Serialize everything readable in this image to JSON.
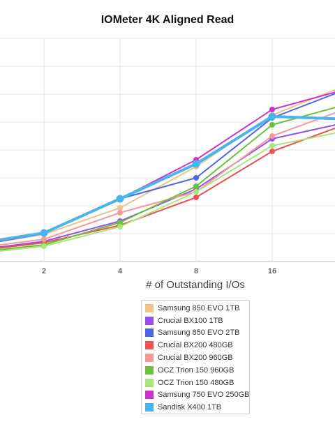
{
  "chart_data": {
    "type": "line",
    "title": "IOMeter 4K Aligned Read",
    "xlabel": "# of Outstanding I/Os",
    "ylabel": "",
    "x": [
      1,
      2,
      4,
      8,
      16,
      32
    ],
    "x_tick_labels": [
      "2",
      "4",
      "8",
      "16"
    ],
    "y_gridlines": 8,
    "grid": true,
    "legend_position": "bottom",
    "series": [
      {
        "name": "Samsung 850 EVO 1TB",
        "color": "#f0c387",
        "values": [
          1.05,
          1.95,
          3.85,
          6.8,
          10.5,
          12.7
        ]
      },
      {
        "name": "Crucial BX100 1TB",
        "color": "#9b4ee8",
        "values": [
          0.75,
          1.45,
          2.9,
          5.2,
          8.8,
          10.0
        ]
      },
      {
        "name": "Samsung 850 EVO 2TB",
        "color": "#4d67e4",
        "values": [
          1.05,
          2.0,
          4.5,
          6.0,
          10.3,
          12.4
        ]
      },
      {
        "name": "Crucial BX200 480GB",
        "color": "#ec5050",
        "values": [
          0.7,
          1.35,
          2.6,
          4.6,
          7.9,
          9.9
        ]
      },
      {
        "name": "Crucial BX200 960GB",
        "color": "#f49a9a",
        "values": [
          0.9,
          1.6,
          3.5,
          5.0,
          9.0,
          11.0
        ]
      },
      {
        "name": "OCZ Trion 150 960GB",
        "color": "#6ac23a",
        "values": [
          0.6,
          1.2,
          2.8,
          5.4,
          9.8,
          11.3
        ]
      },
      {
        "name": "OCZ Trion 150 480GB",
        "color": "#a8e67a",
        "values": [
          0.5,
          1.1,
          2.5,
          5.0,
          8.3,
          9.4
        ]
      },
      {
        "name": "Samsung 750 EVO 250GB",
        "color": "#cc33cc",
        "values": [
          1.1,
          2.0,
          4.5,
          7.3,
          10.9,
          12.4
        ]
      },
      {
        "name": "Sandisk X400 1TB",
        "color": "#4ab5ec",
        "values": [
          1.2,
          2.05,
          4.5,
          7.0,
          10.4,
          10.2
        ]
      }
    ]
  }
}
